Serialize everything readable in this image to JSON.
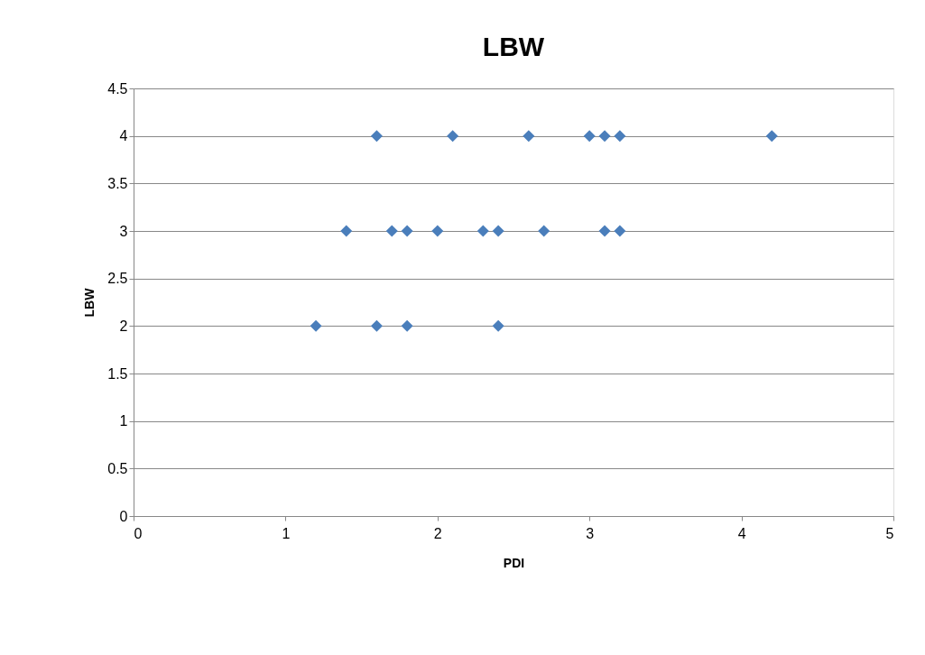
{
  "chart_data": {
    "type": "scatter",
    "title": "LBW",
    "xlabel": "PDI",
    "ylabel": "LBW",
    "series": [
      {
        "color": "#4a7ebb",
        "x": [
          1.6,
          2.1,
          2.6,
          3.0,
          3.1,
          3.2,
          4.2,
          1.4,
          1.7,
          1.8,
          2.0,
          2.3,
          2.4,
          2.7,
          3.1,
          3.2,
          1.2,
          1.6,
          1.8,
          2.4
        ],
        "values": [
          4,
          4,
          4,
          4,
          4,
          4,
          4,
          3,
          3,
          3,
          3,
          3,
          3,
          3,
          3,
          3,
          2,
          2,
          2,
          2
        ]
      }
    ],
    "xlim": [
      0,
      5
    ],
    "ylim": [
      0,
      4.5
    ],
    "xticks": [
      0,
      1,
      2,
      3,
      4,
      5
    ],
    "yticks": [
      0,
      0.5,
      1,
      1.5,
      2,
      2.5,
      3,
      3.5,
      4,
      4.5
    ],
    "grid": "y",
    "marker": "diamond"
  }
}
